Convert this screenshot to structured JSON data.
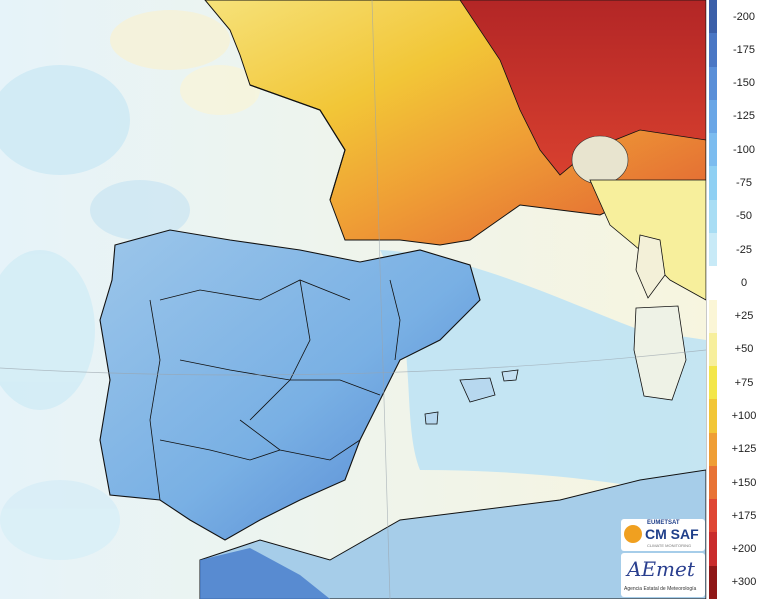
{
  "legend": {
    "labels": [
      "-200",
      "-175",
      "-150",
      "-125",
      "-100",
      "-75",
      "-50",
      "-25",
      "0",
      "+25",
      "+50",
      "+75",
      "+100",
      "+125",
      "+150",
      "+175",
      "+200",
      "+300"
    ],
    "colors": [
      "#3b5fa8",
      "#4a77c4",
      "#5a8fd8",
      "#6aa6e6",
      "#7cbcef",
      "#8fd0f3",
      "#a8ddf4",
      "#c8eaf7",
      "#ffffff",
      "#fbf6d6",
      "#f7ef9c",
      "#f3e64a",
      "#f2c637",
      "#ef9e35",
      "#e87335",
      "#df4634",
      "#c92c2c",
      "#8f1717"
    ]
  },
  "logos": {
    "eumetsat_label": "EUMETSAT",
    "cmsaf_label": "CM SAF",
    "cmsaf_sub": "CLIMATE MONITORING",
    "aemet_label": "AEmet",
    "aemet_sub": "Agencia Estatal de Meteorología"
  },
  "map": {
    "colors": {
      "sea": "#e8f4f8",
      "sea_light": "#f4fafc",
      "land_france_north": "#f3e068",
      "land_france_mid": "#ef9e35",
      "land_france_east": "#c92c2c",
      "land_iberia": "#7fb6e6",
      "land_iberia_dark": "#3f73c8",
      "land_north_africa": "#9fc9e8",
      "land_italy": "#f7ef9c",
      "borders": "#111111"
    }
  }
}
